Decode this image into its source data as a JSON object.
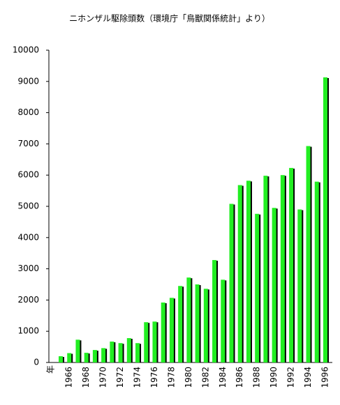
{
  "chart_data": {
    "type": "bar",
    "title": "ニホンザル駆除頭数（環境庁「鳥獣関係統計」より）",
    "x_label": "年",
    "categories": [
      null,
      "1966",
      null,
      "1968",
      null,
      "1970",
      null,
      "1972",
      null,
      "1974",
      null,
      "1976",
      null,
      "1978",
      null,
      "1980",
      null,
      "1982",
      null,
      "1984",
      null,
      "1986",
      null,
      "1988",
      null,
      "1990",
      null,
      "1992",
      null,
      "1994",
      null,
      "1996"
    ],
    "values": [
      200,
      300,
      730,
      310,
      400,
      460,
      670,
      620,
      780,
      620,
      1290,
      1310,
      1920,
      2070,
      2450,
      2720,
      2500,
      2360,
      3280,
      2650,
      5080,
      5680,
      5820,
      4760,
      5980,
      4950,
      6000,
      6230,
      4900,
      6930,
      5790,
      9130
    ],
    "color": "#22ee22",
    "ylim": [
      0,
      10000
    ],
    "yticks": [
      0,
      1000,
      2000,
      3000,
      4000,
      5000,
      6000,
      7000,
      8000,
      9000,
      10000
    ],
    "grid": false
  }
}
